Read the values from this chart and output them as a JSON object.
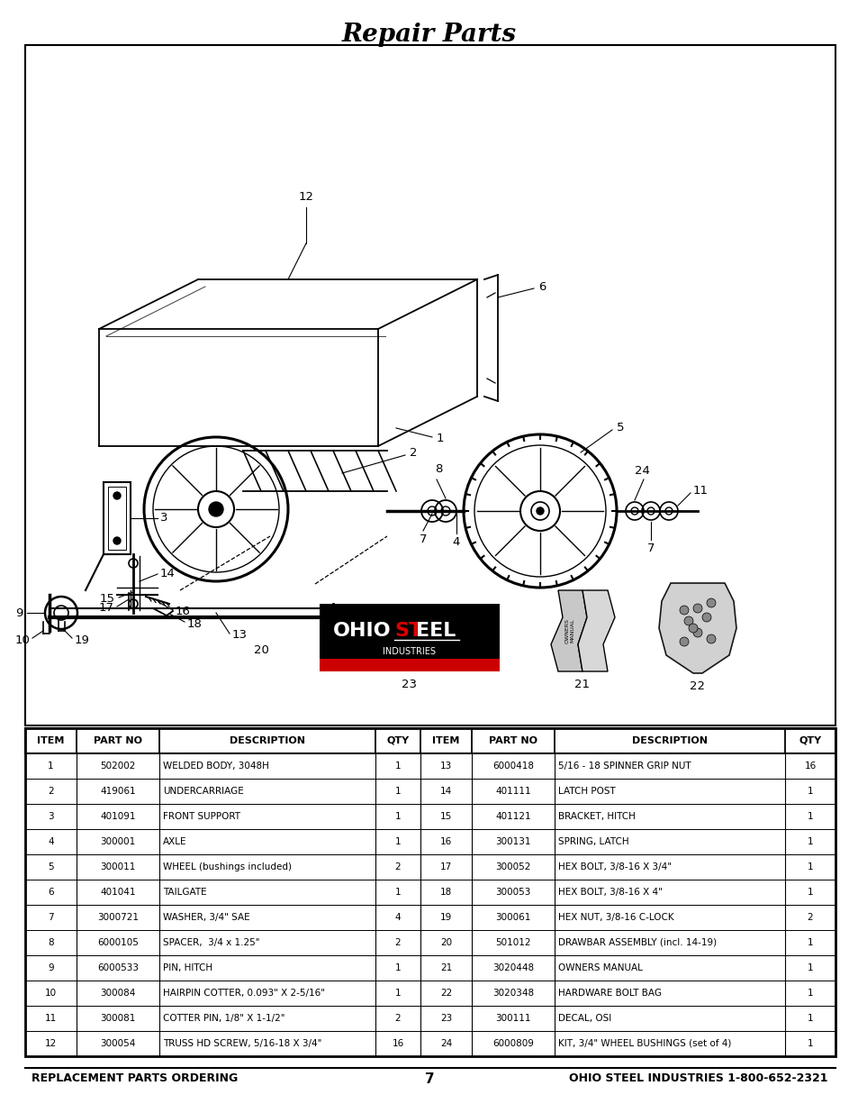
{
  "title": "Repair Parts",
  "title_fontsize": 20,
  "page_number": "7",
  "footer_left": "REPLACEMENT PARTS ORDERING",
  "footer_right": "OHIO STEEL INDUSTRIES 1-800-652-2321",
  "table_headers": [
    "ITEM",
    "PART NO",
    "DESCRIPTION",
    "QTY",
    "ITEM",
    "PART NO",
    "DESCRIPTION",
    "QTY"
  ],
  "table_rows": [
    [
      "1",
      "502002",
      "WELDED BODY, 3048H",
      "1",
      "13",
      "6000418",
      "5/16 - 18 SPINNER GRIP NUT",
      "16"
    ],
    [
      "2",
      "419061",
      "UNDERCARRIAGE",
      "1",
      "14",
      "401111",
      "LATCH POST",
      "1"
    ],
    [
      "3",
      "401091",
      "FRONT SUPPORT",
      "1",
      "15",
      "401121",
      "BRACKET, HITCH",
      "1"
    ],
    [
      "4",
      "300001",
      "AXLE",
      "1",
      "16",
      "300131",
      "SPRING, LATCH",
      "1"
    ],
    [
      "5",
      "300011",
      "WHEEL (bushings included)",
      "2",
      "17",
      "300052",
      "HEX BOLT, 3/8-16 X 3/4\"",
      "1"
    ],
    [
      "6",
      "401041",
      "TAILGATE",
      "1",
      "18",
      "300053",
      "HEX BOLT, 3/8-16 X 4\"",
      "1"
    ],
    [
      "7",
      "3000721",
      "WASHER, 3/4\" SAE",
      "4",
      "19",
      "300061",
      "HEX NUT, 3/8-16 C-LOCK",
      "2"
    ],
    [
      "8",
      "6000105",
      "SPACER,  3/4 x 1.25\"",
      "2",
      "20",
      "501012",
      "DRAWBAR ASSEMBLY (incl. 14-19)",
      "1"
    ],
    [
      "9",
      "6000533",
      "PIN, HITCH",
      "1",
      "21",
      "3020448",
      "OWNERS MANUAL",
      "1"
    ],
    [
      "10",
      "300084",
      "HAIRPIN COTTER, 0.093\" X 2-5/16\"",
      "1",
      "22",
      "3020348",
      "HARDWARE BOLT BAG",
      "1"
    ],
    [
      "11",
      "300081",
      "COTTER PIN, 1/8\" X 1-1/2\"",
      "2",
      "23",
      "300111",
      "DECAL, OSI",
      "1"
    ],
    [
      "12",
      "300054",
      "TRUSS HD SCREW, 5/16-18 X 3/4\"",
      "16",
      "24",
      "6000809",
      "KIT, 3/4\" WHEEL BUSHINGS (set of 4)",
      "1"
    ]
  ],
  "bg_color": "#ffffff"
}
